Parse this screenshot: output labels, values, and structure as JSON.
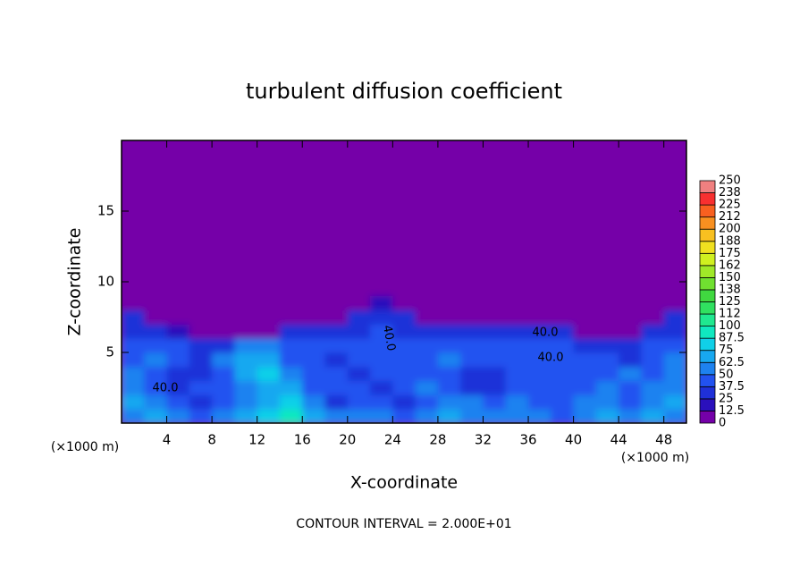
{
  "chart_data": {
    "type": "heatmap",
    "title": "turbulent diffusion coefficient",
    "xlabel": "X-coordinate",
    "ylabel": "Z-coordinate",
    "x_unit_left": "(×1000 m)",
    "x_unit_right": "(×1000 m)",
    "footer": "CONTOUR INTERVAL = 2.000E+01",
    "contour_labels": [
      "40.0",
      "40.0",
      "40.0",
      "40.0"
    ],
    "xlim": [
      0,
      50
    ],
    "ylim": [
      0,
      20
    ],
    "xticks": [
      4,
      8,
      12,
      16,
      20,
      24,
      28,
      32,
      36,
      40,
      44,
      48
    ],
    "yticks": [
      5,
      10,
      15
    ],
    "x": [
      1,
      3,
      5,
      7,
      9,
      11,
      13,
      15,
      17,
      19,
      21,
      23,
      25,
      27,
      29,
      31,
      33,
      35,
      37,
      39,
      41,
      43,
      45,
      47,
      49
    ],
    "z": [
      0.5,
      1.5,
      2.5,
      3.5,
      4.5,
      5.5,
      6.5,
      7.5,
      8.5
    ],
    "values": [
      [
        50,
        62.5,
        50,
        37.5,
        50,
        62.5,
        75,
        87.5,
        62.5,
        50,
        50,
        50,
        37.5,
        50,
        62.5,
        50,
        50,
        50,
        50,
        37.5,
        50,
        62.5,
        50,
        62.5,
        50
      ],
      [
        62.5,
        50,
        37.5,
        25,
        37.5,
        50,
        62.5,
        75,
        50,
        25,
        37.5,
        37.5,
        25,
        37.5,
        50,
        50,
        37.5,
        50,
        37.5,
        37.5,
        50,
        50,
        37.5,
        50,
        62.5
      ],
      [
        50,
        37.5,
        25,
        37.5,
        37.5,
        50,
        62.5,
        62.5,
        37.5,
        37.5,
        37.5,
        25,
        37.5,
        50,
        37.5,
        25,
        25,
        37.5,
        37.5,
        37.5,
        37.5,
        50,
        37.5,
        50,
        50
      ],
      [
        50,
        37.5,
        25,
        25,
        37.5,
        62.5,
        75,
        50,
        37.5,
        37.5,
        25,
        37.5,
        37.5,
        37.5,
        37.5,
        25,
        25,
        37.5,
        37.5,
        37.5,
        37.5,
        37.5,
        50,
        37.5,
        50
      ],
      [
        37.5,
        50,
        37.5,
        25,
        50,
        62.5,
        62.5,
        37.5,
        37.5,
        25,
        37.5,
        37.5,
        37.5,
        37.5,
        50,
        37.5,
        37.5,
        37.5,
        37.5,
        37.5,
        37.5,
        37.5,
        25,
        37.5,
        50
      ],
      [
        37.5,
        37.5,
        37.5,
        25,
        25,
        50,
        50,
        37.5,
        37.5,
        37.5,
        37.5,
        37.5,
        37.5,
        37.5,
        37.5,
        37.5,
        37.5,
        37.5,
        37.5,
        37.5,
        25,
        25,
        25,
        37.5,
        37.5
      ],
      [
        25,
        25,
        12.5,
        0,
        0,
        0,
        0,
        25,
        25,
        25,
        25,
        37.5,
        25,
        25,
        25,
        25,
        25,
        25,
        25,
        25,
        0,
        0,
        0,
        25,
        25
      ],
      [
        25,
        0,
        0,
        0,
        0,
        0,
        0,
        0,
        0,
        0,
        25,
        25,
        25,
        0,
        0,
        0,
        0,
        0,
        0,
        0,
        0,
        0,
        0,
        0,
        25
      ],
      [
        0,
        0,
        0,
        0,
        0,
        0,
        0,
        0,
        0,
        0,
        0,
        12.5,
        0,
        0,
        0,
        0,
        0,
        0,
        0,
        0,
        0,
        0,
        0,
        0,
        0
      ]
    ],
    "colorbar": {
      "levels": [
        0,
        12.5,
        25,
        37.5,
        50,
        62.5,
        75,
        87.5,
        100,
        {
          "value": 112.5,
          "label": "112"
        },
        125,
        {
          "value": 137.5,
          "label": "138"
        },
        150,
        {
          "value": 162.5,
          "label": "162"
        },
        175,
        {
          "value": 187.5,
          "label": "188"
        },
        200,
        {
          "value": 212.5,
          "label": "212"
        },
        225,
        {
          "value": 237.5,
          "label": "238"
        },
        250
      ],
      "colors": [
        "#7400a8",
        "#2a10bc",
        "#1f30d8",
        "#2252f0",
        "#1e82f0",
        "#18a8f0",
        "#10d0e8",
        "#10e8c0",
        "#20e890",
        "#30e060",
        "#40d840",
        "#70e030",
        "#a0e828",
        "#d0f020",
        "#f0e020",
        "#f8c020",
        "#f89020",
        "#f86020",
        "#f83030",
        "#f08080"
      ]
    }
  }
}
